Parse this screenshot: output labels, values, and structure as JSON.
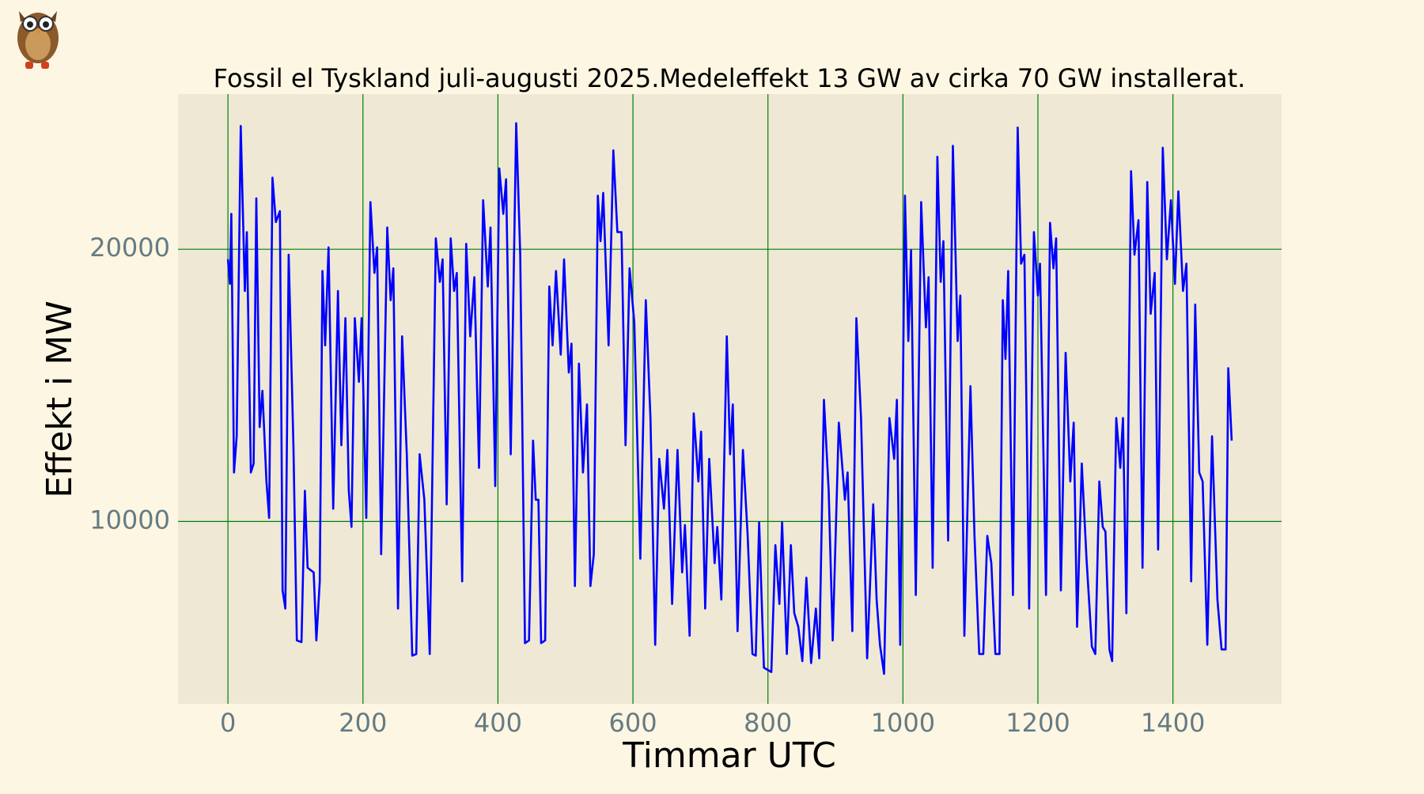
{
  "chart_data": {
    "type": "line",
    "title": "Fossil el Tyskland juli-augusti 2025.Medeleffekt 13 GW av cirka 70 GW installerat.",
    "xlabel": "Timmar UTC",
    "ylabel": "Effekt i MW",
    "color": "#0000ff",
    "grid": true,
    "xlim": [
      -74,
      1561
    ],
    "ylim": [
      3300,
      25700
    ],
    "xticks": [
      0,
      200,
      400,
      600,
      800,
      1000,
      1200,
      1400
    ],
    "yticks": [
      10000,
      20000
    ],
    "x": [
      0,
      3,
      5,
      9,
      13,
      19,
      25,
      28,
      34,
      38,
      42,
      47,
      51,
      57,
      61,
      66,
      71,
      77,
      81,
      85,
      90,
      97,
      102,
      109,
      114,
      118,
      127,
      131,
      136,
      140,
      144,
      149,
      156,
      163,
      168,
      174,
      179,
      183,
      188,
      194,
      198,
      205,
      211,
      217,
      221,
      227,
      236,
      241,
      245,
      252,
      258,
      265,
      273,
      279,
      284,
      291,
      299,
      308,
      314,
      318,
      324,
      330,
      335,
      339,
      347,
      353,
      359,
      365,
      372,
      378,
      385,
      389,
      396,
      402,
      408,
      412,
      419,
      427,
      433,
      440,
      446,
      452,
      456,
      460,
      464,
      470,
      476,
      481,
      486,
      493,
      498,
      505,
      509,
      514,
      520,
      526,
      532,
      537,
      542,
      548,
      552,
      556,
      564,
      571,
      577,
      583,
      589,
      595,
      602,
      611,
      619,
      626,
      633,
      639,
      646,
      651,
      658,
      666,
      673,
      677,
      684,
      690,
      697,
      701,
      707,
      713,
      721,
      725,
      731,
      739,
      744,
      748,
      755,
      763,
      770,
      777,
      782,
      787,
      794,
      805,
      811,
      817,
      821,
      828,
      834,
      839,
      845,
      851,
      857,
      864,
      871,
      876,
      883,
      890,
      896,
      905,
      914,
      918,
      925,
      931,
      938,
      947,
      956,
      961,
      966,
      972,
      980,
      987,
      991,
      996,
      1003,
      1008,
      1012,
      1019,
      1027,
      1034,
      1038,
      1044,
      1051,
      1056,
      1060,
      1067,
      1074,
      1081,
      1085,
      1091,
      1100,
      1106,
      1113,
      1119,
      1125,
      1131,
      1137,
      1143,
      1148,
      1152,
      1156,
      1163,
      1170,
      1175,
      1180,
      1187,
      1194,
      1200,
      1203,
      1212,
      1218,
      1223,
      1227,
      1234,
      1241,
      1248,
      1253,
      1258,
      1265,
      1272,
      1280,
      1285,
      1291,
      1296,
      1300,
      1306,
      1310,
      1316,
      1322,
      1326,
      1331,
      1338,
      1343,
      1349,
      1355,
      1362,
      1367,
      1373,
      1378,
      1385,
      1391,
      1397,
      1403,
      1408,
      1415,
      1420,
      1427,
      1433,
      1439,
      1444,
      1451,
      1458,
      1466,
      1472,
      1478,
      1482,
      1487
    ],
    "values": [
      19630,
      18730,
      21300,
      11800,
      13130,
      24530,
      18470,
      20630,
      11800,
      12130,
      21870,
      13470,
      14800,
      11470,
      10130,
      22630,
      21000,
      21400,
      7470,
      6800,
      19800,
      12800,
      5630,
      5570,
      11130,
      8300,
      8130,
      5630,
      7800,
      19200,
      16470,
      20070,
      10470,
      18470,
      12800,
      17470,
      11130,
      9800,
      17470,
      15130,
      17470,
      10130,
      21730,
      19130,
      20070,
      8800,
      20800,
      18130,
      19300,
      6800,
      16800,
      12470,
      5070,
      5130,
      12470,
      10800,
      5130,
      20400,
      18800,
      19630,
      10630,
      20400,
      18470,
      19130,
      7800,
      20200,
      16800,
      18970,
      11970,
      21800,
      18630,
      20800,
      11300,
      22970,
      21300,
      22570,
      12470,
      24630,
      19800,
      5530,
      5630,
      12970,
      10800,
      10800,
      5530,
      5630,
      18630,
      16470,
      19200,
      16130,
      19630,
      15470,
      16530,
      7630,
      15800,
      11800,
      14300,
      7630,
      8800,
      21970,
      20300,
      22070,
      16470,
      23630,
      20630,
      20630,
      12800,
      19300,
      17300,
      8630,
      18130,
      13800,
      5470,
      12300,
      10470,
      12630,
      6970,
      12630,
      8130,
      9870,
      5800,
      13970,
      11470,
      13300,
      6800,
      12300,
      8470,
      9800,
      7130,
      16800,
      12470,
      14300,
      5970,
      12630,
      9470,
      5130,
      5070,
      9970,
      4630,
      4470,
      9130,
      6970,
      9970,
      5130,
      9130,
      6630,
      6130,
      4870,
      7930,
      4800,
      6800,
      4970,
      14470,
      11130,
      5630,
      13630,
      10800,
      11800,
      5970,
      17470,
      13800,
      4970,
      10630,
      7130,
      5470,
      4400,
      13800,
      12300,
      14470,
      5470,
      21970,
      16630,
      19970,
      7300,
      21730,
      17130,
      18970,
      8300,
      23400,
      18800,
      20300,
      9300,
      23800,
      16630,
      18300,
      5800,
      14970,
      9470,
      5130,
      5130,
      9470,
      8470,
      5130,
      5130,
      18130,
      15970,
      19200,
      7300,
      24470,
      19470,
      19800,
      6800,
      20630,
      18300,
      19470,
      7300,
      20970,
      19300,
      20400,
      7470,
      16200,
      11470,
      13630,
      6130,
      12130,
      8630,
      5400,
      5130,
      11470,
      9800,
      9630,
      5300,
      4870,
      13800,
      11970,
      13800,
      6630,
      22870,
      19800,
      21070,
      8300,
      22470,
      17630,
      19130,
      8970,
      23730,
      19630,
      21800,
      18730,
      22130,
      18470,
      19470,
      7800,
      17970,
      11800,
      11470,
      5470,
      13130,
      7130,
      5300,
      5300,
      15630,
      12970
    ]
  }
}
